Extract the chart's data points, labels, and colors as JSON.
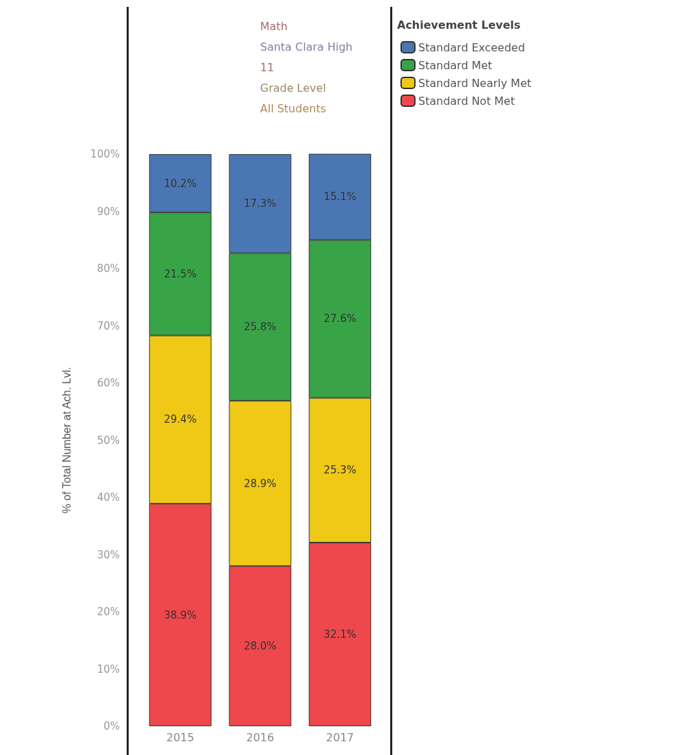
{
  "chart_data": {
    "type": "bar",
    "title": "Math",
    "annotations": [
      "Santa Clara High",
      "11",
      "Grade Level",
      "All Students"
    ],
    "ylabel": "% of Total Number at Ach. Lvl.",
    "legend_title": "Achievement Levels",
    "categories": [
      "2015",
      "2016",
      "2017"
    ],
    "stacked": true,
    "legend": "top right",
    "grid": false,
    "ylim": [
      0,
      100
    ],
    "yticks": [
      {
        "value": 0,
        "label": "0%"
      },
      {
        "value": 10,
        "label": "10%"
      },
      {
        "value": 20,
        "label": "20%"
      },
      {
        "value": 30,
        "label": "30%"
      },
      {
        "value": 40,
        "label": "40%"
      },
      {
        "value": 50,
        "label": "50%"
      },
      {
        "value": 60,
        "label": "60%"
      },
      {
        "value": 70,
        "label": "70%"
      },
      {
        "value": 80,
        "label": "80%"
      },
      {
        "value": 90,
        "label": "90%"
      },
      {
        "value": 100,
        "label": "100%"
      }
    ],
    "series": [
      {
        "name": "Standard Not Met",
        "color": "#ee474c",
        "values": [
          38.9,
          28.0,
          32.1
        ],
        "value_labels": [
          "38.9%",
          "28.0%",
          "32.1%"
        ]
      },
      {
        "name": "Standard Nearly Met",
        "color": "#efc916",
        "values": [
          29.4,
          28.9,
          25.3
        ],
        "value_labels": [
          "29.4%",
          "28.9%",
          "25.3%"
        ]
      },
      {
        "name": "Standard Met",
        "color": "#38a447",
        "values": [
          21.5,
          25.8,
          27.6
        ],
        "value_labels": [
          "21.5%",
          "25.8%",
          "27.6%"
        ]
      },
      {
        "name": "Standard Exceeded",
        "color": "#4a77b3",
        "values": [
          10.2,
          17.3,
          15.1
        ],
        "value_labels": [
          "10.2%",
          "17.3%",
          "15.1%"
        ]
      }
    ]
  }
}
